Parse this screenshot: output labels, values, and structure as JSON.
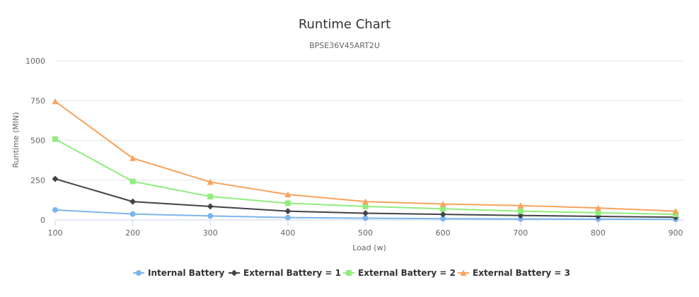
{
  "chart_data": {
    "type": "line",
    "title": "Runtime Chart",
    "subtitle": "BPSE36V45ART2U",
    "xlabel": "Load (w)",
    "ylabel": "Runtime (MIN)",
    "x": [
      100,
      200,
      300,
      400,
      500,
      600,
      700,
      800,
      900
    ],
    "xlim": [
      100,
      910
    ],
    "ylim": [
      0,
      1000
    ],
    "yticks": [
      0,
      250,
      500,
      750,
      1000
    ],
    "grid": true,
    "legend": "bottom",
    "series": [
      {
        "name": "Internal Battery",
        "color": "#7cb5ec",
        "marker": "circle",
        "values": [
          63,
          37,
          25,
          15,
          11,
          8,
          6,
          5,
          4
        ]
      },
      {
        "name": "External Battery = 1",
        "color": "#434348",
        "marker": "diamond",
        "values": [
          258,
          115,
          85,
          55,
          42,
          35,
          28,
          22,
          17
        ]
      },
      {
        "name": "External Battery = 2",
        "color": "#90ed7d",
        "marker": "square",
        "values": [
          508,
          242,
          147,
          105,
          85,
          70,
          55,
          45,
          35
        ]
      },
      {
        "name": "External Battery = 3",
        "color": "#f7a35c",
        "marker": "triangle",
        "values": [
          745,
          388,
          238,
          160,
          115,
          100,
          90,
          75,
          55
        ]
      }
    ]
  }
}
